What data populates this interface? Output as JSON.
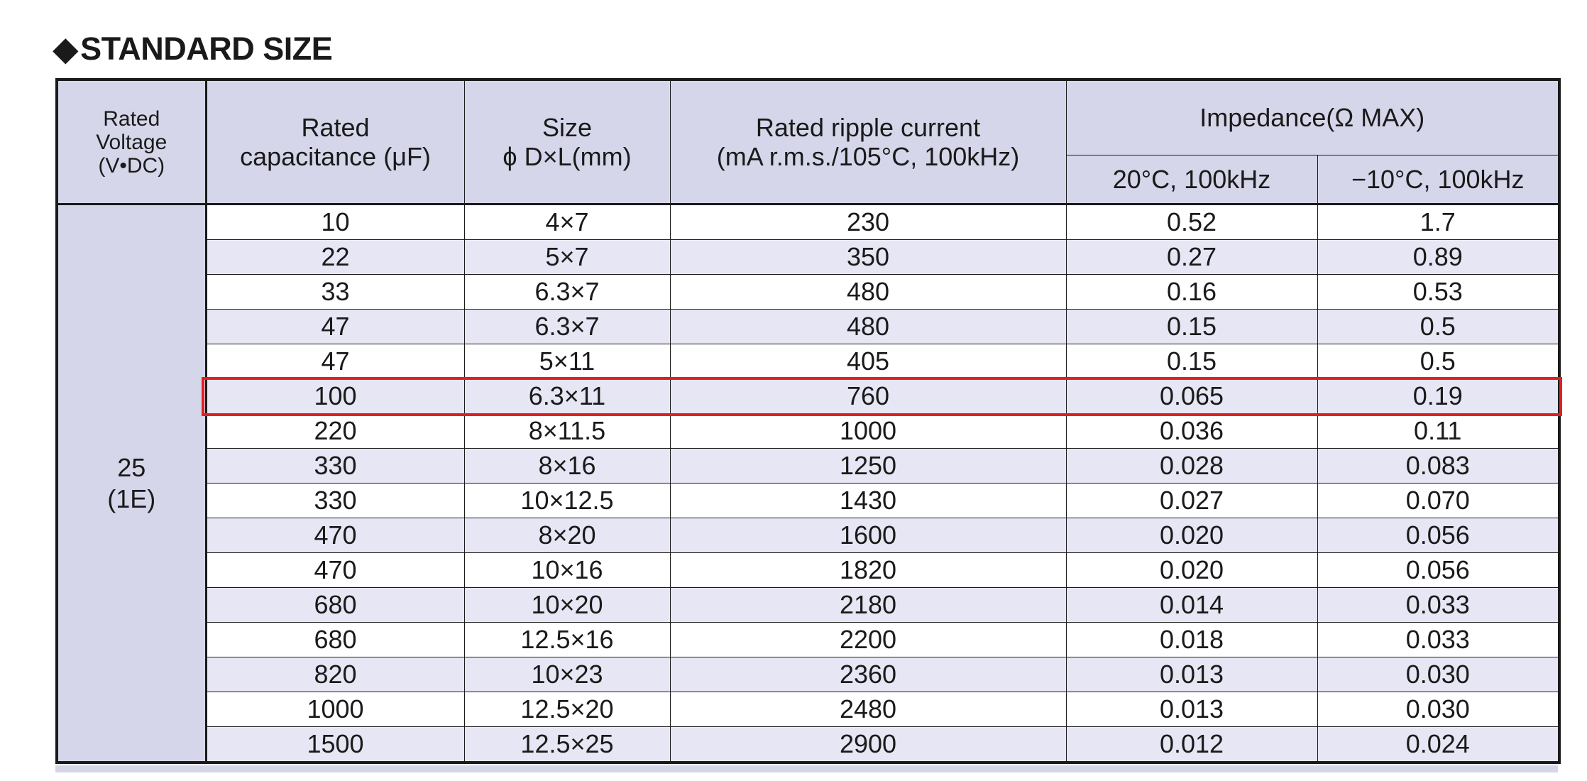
{
  "title": {
    "diamond": "◆",
    "text": "STANDARD SIZE"
  },
  "table": {
    "headers": {
      "voltage": [
        "Rated",
        "Voltage",
        "(V•DC)"
      ],
      "capacitance": [
        "Rated",
        "capacitance (μF)"
      ],
      "size": [
        "Size",
        "ϕ D×L(mm)"
      ],
      "ripple": [
        "Rated ripple current",
        "(mA r.m.s./105°C, 100kHz)"
      ],
      "impedance": "Impedance(Ω MAX)",
      "impedance_20": "20°C, 100kHz",
      "impedance_m10": "−10°C, 100kHz"
    },
    "voltage_group": {
      "value": "25",
      "code": "(1E)"
    },
    "highlighted_row_index": 5,
    "rows": [
      {
        "capacitance": "10",
        "size": "4×7",
        "ripple": "230",
        "z20": "0.52",
        "zm10": "1.7"
      },
      {
        "capacitance": "22",
        "size": "5×7",
        "ripple": "350",
        "z20": "0.27",
        "zm10": "0.89"
      },
      {
        "capacitance": "33",
        "size": "6.3×7",
        "ripple": "480",
        "z20": "0.16",
        "zm10": "0.53"
      },
      {
        "capacitance": "47",
        "size": "6.3×7",
        "ripple": "480",
        "z20": "0.15",
        "zm10": "0.5"
      },
      {
        "capacitance": "47",
        "size": "5×11",
        "ripple": "405",
        "z20": "0.15",
        "zm10": "0.5"
      },
      {
        "capacitance": "100",
        "size": "6.3×11",
        "ripple": "760",
        "z20": "0.065",
        "zm10": "0.19"
      },
      {
        "capacitance": "220",
        "size": "8×11.5",
        "ripple": "1000",
        "z20": "0.036",
        "zm10": "0.11"
      },
      {
        "capacitance": "330",
        "size": "8×16",
        "ripple": "1250",
        "z20": "0.028",
        "zm10": "0.083"
      },
      {
        "capacitance": "330",
        "size": "10×12.5",
        "ripple": "1430",
        "z20": "0.027",
        "zm10": "0.070"
      },
      {
        "capacitance": "470",
        "size": "8×20",
        "ripple": "1600",
        "z20": "0.020",
        "zm10": "0.056"
      },
      {
        "capacitance": "470",
        "size": "10×16",
        "ripple": "1820",
        "z20": "0.020",
        "zm10": "0.056"
      },
      {
        "capacitance": "680",
        "size": "10×20",
        "ripple": "2180",
        "z20": "0.014",
        "zm10": "0.033"
      },
      {
        "capacitance": "680",
        "size": "12.5×16",
        "ripple": "2200",
        "z20": "0.018",
        "zm10": "0.033"
      },
      {
        "capacitance": "820",
        "size": "10×23",
        "ripple": "2360",
        "z20": "0.013",
        "zm10": "0.030"
      },
      {
        "capacitance": "1000",
        "size": "12.5×20",
        "ripple": "2480",
        "z20": "0.013",
        "zm10": "0.030"
      },
      {
        "capacitance": "1500",
        "size": "12.5×25",
        "ripple": "2900",
        "z20": "0.012",
        "zm10": "0.024"
      }
    ]
  },
  "colors": {
    "header_bg": "#d6d6ea",
    "stripe_bg": "#e6e6f4",
    "highlight": "#e02020",
    "border": "#1a1a1a"
  }
}
